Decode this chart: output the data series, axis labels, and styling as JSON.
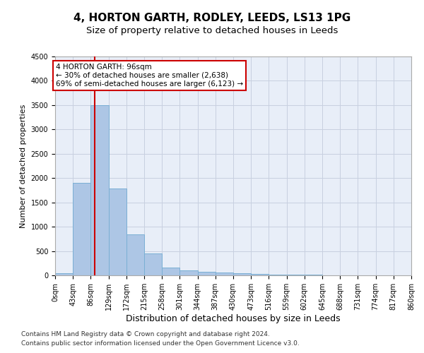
{
  "title": "4, HORTON GARTH, RODLEY, LEEDS, LS13 1PG",
  "subtitle": "Size of property relative to detached houses in Leeds",
  "xlabel": "Distribution of detached houses by size in Leeds",
  "ylabel": "Number of detached properties",
  "bin_edges": [
    0,
    43,
    86,
    129,
    172,
    215,
    258,
    301,
    344,
    387,
    430,
    473,
    516,
    559,
    602,
    645,
    688,
    731,
    774,
    817,
    860
  ],
  "bar_values": [
    50,
    1900,
    3500,
    1780,
    840,
    450,
    160,
    100,
    75,
    55,
    40,
    30,
    15,
    10,
    8,
    5,
    3,
    2,
    1,
    0
  ],
  "bar_color": "#adc6e5",
  "bar_edgecolor": "#7aafd4",
  "vline_x": 96,
  "vline_color": "#cc0000",
  "ylim": [
    0,
    4500
  ],
  "yticks": [
    0,
    500,
    1000,
    1500,
    2000,
    2500,
    3000,
    3500,
    4000,
    4500
  ],
  "annotation_text": "4 HORTON GARTH: 96sqm\n← 30% of detached houses are smaller (2,638)\n69% of semi-detached houses are larger (6,123) →",
  "annotation_box_color": "#ffffff",
  "annotation_box_edgecolor": "#cc0000",
  "footer_line1": "Contains HM Land Registry data © Crown copyright and database right 2024.",
  "footer_line2": "Contains public sector information licensed under the Open Government Licence v3.0.",
  "background_color": "#e8eef8",
  "grid_color": "#c8d0e0",
  "title_fontsize": 11,
  "subtitle_fontsize": 9.5,
  "tick_fontsize": 7,
  "ylabel_fontsize": 8,
  "xlabel_fontsize": 9,
  "footer_fontsize": 6.5,
  "annotation_fontsize": 7.5
}
